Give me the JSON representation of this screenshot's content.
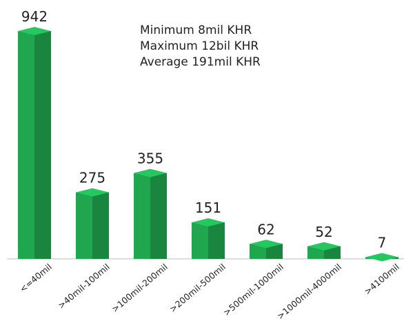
{
  "chart_data": {
    "type": "bar3d",
    "categories": [
      "<=40mil",
      ">40mil-100mil",
      ">100mil-200mil",
      ">200mil-500mil",
      ">500mil-1000mil",
      ">1000mil-4000mil",
      ">4100mil"
    ],
    "values": [
      942,
      275,
      355,
      151,
      62,
      52,
      7
    ],
    "color": "#1fa64f",
    "annotations": [
      "Minimum 8mil KHR",
      "Maximum 12bil KHR",
      "Average 191mil KHR"
    ]
  }
}
